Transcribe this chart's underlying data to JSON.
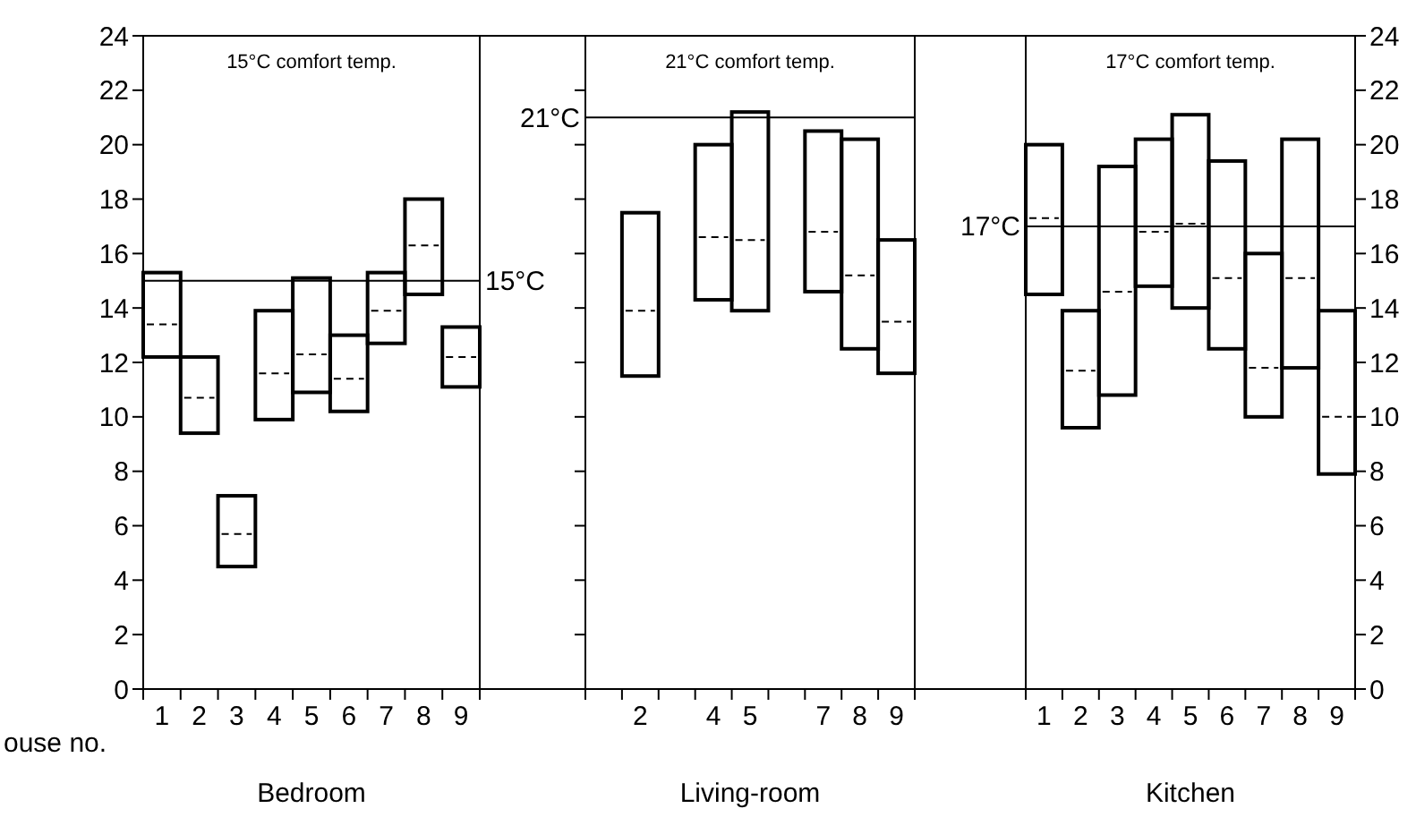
{
  "chart_data": [
    {
      "type": "box",
      "title": "15°C comfort temp.",
      "xlabel": "Bedroom",
      "annotations": [
        "ouse no."
      ],
      "categories": [
        "1",
        "2",
        "3",
        "4",
        "5",
        "6",
        "7",
        "8",
        "9"
      ],
      "ylim": [
        0,
        24
      ],
      "yticks": [
        0,
        2,
        4,
        6,
        8,
        10,
        12,
        14,
        16,
        18,
        20,
        22,
        24
      ],
      "ref_lines": [
        {
          "axis": "y",
          "value": 15,
          "label": "15°C"
        }
      ],
      "series": [
        {
          "color": "#000000",
          "boxes": [
            {
              "low": 12.2,
              "q1": 12.2,
              "median": 13.4,
              "q3": 15.3,
              "high": 15.3
            },
            {
              "low": 9.4,
              "q1": 9.4,
              "median": 10.7,
              "q3": 12.2,
              "high": 12.2
            },
            {
              "low": 4.5,
              "q1": 4.5,
              "median": 5.7,
              "q3": 7.1,
              "high": 7.1
            },
            {
              "low": 9.9,
              "q1": 9.9,
              "median": 11.6,
              "q3": 13.9,
              "high": 13.9
            },
            {
              "low": 10.9,
              "q1": 10.9,
              "median": 12.3,
              "q3": 15.1,
              "high": 15.1
            },
            {
              "low": 10.2,
              "q1": 10.2,
              "median": 11.4,
              "q3": 13,
              "high": 13
            },
            {
              "low": 12.7,
              "q1": 12.7,
              "median": 13.9,
              "q3": 15.3,
              "high": 15.3
            },
            {
              "low": 14.5,
              "q1": 14.5,
              "median": 16.3,
              "q3": 18,
              "high": 18
            },
            {
              "low": 11.1,
              "q1": 11.1,
              "median": 12.2,
              "q3": 13.3,
              "high": 13.3
            }
          ]
        }
      ]
    },
    {
      "type": "box",
      "title": "21°C comfort temp.",
      "xlabel": "Living-room",
      "categories": [
        null,
        "2",
        null,
        "4",
        "5",
        null,
        "7",
        "8",
        "9"
      ],
      "ylim": [
        0,
        24
      ],
      "yticks": [
        0,
        2,
        4,
        6,
        8,
        10,
        12,
        14,
        16,
        18,
        20,
        22,
        24
      ],
      "tick_labels": "x",
      "ref_lines": [
        {
          "axis": "y",
          "value": 21,
          "label": "21°C"
        }
      ],
      "series": [
        {
          "color": "#000000",
          "boxes": [
            null,
            {
              "low": 11.5,
              "q1": 11.5,
              "median": 13.9,
              "q3": 17.5,
              "high": 17.5
            },
            null,
            {
              "low": 14.3,
              "q1": 14.3,
              "median": 16.6,
              "q3": 20,
              "high": 20
            },
            {
              "low": 13.9,
              "q1": 13.9,
              "median": 16.5,
              "q3": 21.2,
              "high": 21.2
            },
            null,
            {
              "low": 14.6,
              "q1": 14.6,
              "median": 16.8,
              "q3": 20.5,
              "high": 20.5
            },
            {
              "low": 12.5,
              "q1": 12.5,
              "median": 15.2,
              "q3": 20.2,
              "high": 20.2
            },
            {
              "low": 11.6,
              "q1": 11.6,
              "median": 13.5,
              "q3": 16.5,
              "high": 16.5
            }
          ]
        }
      ]
    },
    {
      "type": "box",
      "title": "17°C comfort temp.",
      "xlabel": "Kitchen",
      "categories": [
        "1",
        "2",
        "3",
        "4",
        "5",
        "6",
        "7",
        "8",
        "9"
      ],
      "y2lim": [
        0,
        24
      ],
      "y2ticks": [
        0,
        2,
        4,
        6,
        8,
        10,
        12,
        14,
        16,
        18,
        20,
        22,
        24
      ],
      "ref_lines": [
        {
          "axis": "y2",
          "value": 17,
          "label": "17°C"
        }
      ],
      "series": [
        {
          "color": "#000000",
          "axis": "y2",
          "boxes": [
            {
              "low": 14.5,
              "q1": 14.5,
              "median": 17.3,
              "q3": 20,
              "high": 20
            },
            {
              "low": 9.6,
              "q1": 9.6,
              "median": 11.7,
              "q3": 13.9,
              "high": 13.9
            },
            {
              "low": 10.8,
              "q1": 10.8,
              "median": 14.6,
              "q3": 19.2,
              "high": 19.2
            },
            {
              "low": 14.8,
              "q1": 14.8,
              "median": 16.8,
              "q3": 20.2,
              "high": 20.2
            },
            {
              "low": 14,
              "q1": 14,
              "median": 17.1,
              "q3": 21.1,
              "high": 21.1
            },
            {
              "low": 12.5,
              "q1": 12.5,
              "median": 15.1,
              "q3": 19.4,
              "high": 19.4
            },
            {
              "low": 10,
              "q1": 10,
              "median": 11.8,
              "q3": 16,
              "high": 16
            },
            {
              "low": 11.8,
              "q1": 11.8,
              "median": 15.1,
              "q3": 20.2,
              "high": 20.2
            },
            {
              "low": 7.9,
              "q1": 7.9,
              "median": 10,
              "q3": 13.9,
              "high": 13.9
            }
          ]
        }
      ]
    }
  ]
}
